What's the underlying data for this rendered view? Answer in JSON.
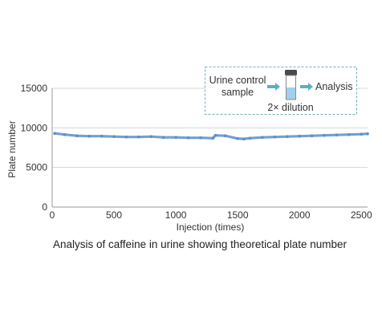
{
  "chart_data": {
    "type": "scatter",
    "title": "",
    "caption": "Analysis of caffeine in urine showing theoretical plate number",
    "xlabel": "Injection (times)",
    "ylabel": "Plate number",
    "xlim": [
      0,
      2550
    ],
    "ylim": [
      0,
      15000
    ],
    "x_ticks": [
      0,
      500,
      1000,
      1500,
      2000,
      2500
    ],
    "y_ticks": [
      0,
      5000,
      10000,
      15000
    ],
    "x_tick_labels": [
      "0",
      "500",
      "1000",
      "1500",
      "2000",
      "2500"
    ],
    "y_tick_labels": [
      "0",
      "5000",
      "10000",
      "15000"
    ],
    "grid": "horizontal",
    "series": [
      {
        "color": "#5b8fc9",
        "x": [
          20,
          100,
          200,
          300,
          400,
          500,
          600,
          700,
          800,
          900,
          1000,
          1100,
          1200,
          1300,
          1320,
          1400,
          1500,
          1550,
          1600,
          1700,
          1800,
          1900,
          2000,
          2100,
          2200,
          2300,
          2400,
          2500,
          2550
        ],
        "y": [
          9300,
          9150,
          9000,
          8950,
          8950,
          8900,
          8850,
          8850,
          8900,
          8800,
          8800,
          8750,
          8750,
          8700,
          9050,
          9000,
          8650,
          8600,
          8700,
          8800,
          8850,
          8900,
          8950,
          9000,
          9050,
          9100,
          9150,
          9200,
          9250
        ]
      }
    ],
    "inset": {
      "sample_label_line1": "Urine control",
      "sample_label_line2": "sample",
      "output_label": "Analysis",
      "dilution_label": "2× dilution"
    }
  }
}
